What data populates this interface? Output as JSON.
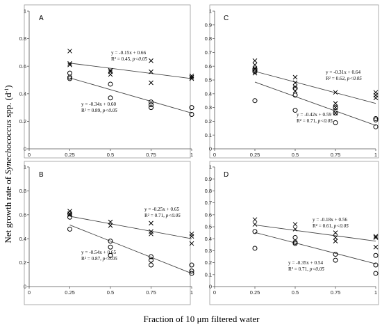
{
  "figure": {
    "ylabel_prefix": "Net growth rate of ",
    "ylabel_italic": "Synechococcus",
    "ylabel_suffix": " spp. (d",
    "ylabel_sup": "-1",
    "ylabel_close": ")",
    "xlabel": "Fraction of 10 μm filtered water"
  },
  "chart_data": [
    {
      "type": "scatter",
      "panel": "A",
      "xlim": [
        0,
        1
      ],
      "ylim": [
        0,
        1
      ],
      "xticks": [
        0,
        0.25,
        0.5,
        0.75,
        1
      ],
      "xtick_labels": [
        "0",
        "0.25",
        "0.5",
        "0.75",
        "1"
      ],
      "yticks": [
        0,
        0.2,
        0.4,
        0.6,
        0.8,
        1
      ],
      "ytick_labels": [
        "0",
        "0.2",
        "0.4",
        "0.6",
        "0.8",
        "1"
      ],
      "series": [
        {
          "marker": "cross",
          "points": [
            [
              0.25,
              0.71
            ],
            [
              0.25,
              0.62
            ],
            [
              0.25,
              0.61
            ],
            [
              0.5,
              0.57
            ],
            [
              0.5,
              0.56
            ],
            [
              0.5,
              0.54
            ],
            [
              0.75,
              0.64
            ],
            [
              0.75,
              0.56
            ],
            [
              0.75,
              0.48
            ],
            [
              1,
              0.53
            ],
            [
              1,
              0.52
            ],
            [
              1,
              0.51
            ]
          ],
          "fit": {
            "slope": -0.15,
            "intercept": 0.66
          },
          "equation": "y = -0.15x + 0.66",
          "r2_label": "R² = 0.45, ",
          "p_label": "p<0.05"
        },
        {
          "marker": "circle",
          "points": [
            [
              0.25,
              0.55
            ],
            [
              0.25,
              0.52
            ],
            [
              0.25,
              0.51
            ],
            [
              0.5,
              0.47
            ],
            [
              0.5,
              0.37
            ],
            [
              0.75,
              0.34
            ],
            [
              0.75,
              0.32
            ],
            [
              0.75,
              0.3
            ],
            [
              1,
              0.3
            ],
            [
              1,
              0.25
            ]
          ],
          "fit": {
            "slope": -0.34,
            "intercept": 0.6
          },
          "equation": "y = -0.34x + 0.60",
          "r2_label": "R² = 0.89, ",
          "p_label": "p<0.05"
        }
      ]
    },
    {
      "type": "scatter",
      "panel": "C",
      "xlim": [
        0,
        1
      ],
      "ylim": [
        0,
        1
      ],
      "xticks": [
        0,
        0.25,
        0.5,
        0.75,
        1
      ],
      "xtick_labels": [
        "0",
        "0.25",
        "0.5",
        "0.75",
        "1"
      ],
      "yticks": [
        0,
        0.1,
        0.2,
        0.3,
        0.4,
        0.5,
        0.6,
        0.7,
        0.8,
        0.9,
        1
      ],
      "ytick_labels": [
        "0",
        "0.1",
        "0.2",
        "0.3",
        "0.4",
        "0.5",
        "0.6",
        "0.7",
        "0.8",
        "0.9",
        "1"
      ],
      "series": [
        {
          "marker": "cross",
          "points": [
            [
              0.25,
              0.64
            ],
            [
              0.25,
              0.61
            ],
            [
              0.25,
              0.58
            ],
            [
              0.25,
              0.55
            ],
            [
              0.5,
              0.52
            ],
            [
              0.5,
              0.48
            ],
            [
              0.5,
              0.45
            ],
            [
              0.5,
              0.42
            ],
            [
              0.75,
              0.41
            ],
            [
              0.75,
              0.33
            ],
            [
              0.75,
              0.3
            ],
            [
              0.75,
              0.26
            ],
            [
              1,
              0.41
            ],
            [
              1,
              0.39
            ],
            [
              1,
              0.37
            ]
          ],
          "fit": {
            "slope": -0.31,
            "intercept": 0.64
          },
          "equation": "y = -0.31x + 0.64",
          "r2_label": "R² = 0.62, ",
          "p_label": "p<0.05"
        },
        {
          "marker": "circle",
          "points": [
            [
              0.25,
              0.58
            ],
            [
              0.25,
              0.57
            ],
            [
              0.25,
              0.56
            ],
            [
              0.25,
              0.35
            ],
            [
              0.5,
              0.44
            ],
            [
              0.5,
              0.39
            ],
            [
              0.5,
              0.28
            ],
            [
              0.75,
              0.3
            ],
            [
              0.75,
              0.26
            ],
            [
              0.75,
              0.19
            ],
            [
              1,
              0.22
            ],
            [
              1,
              0.21
            ],
            [
              1,
              0.16
            ]
          ],
          "fit": {
            "slope": -0.42,
            "intercept": 0.59
          },
          "equation": "y = -0.42x + 0.59",
          "r2_label": "R² = 0.71, ",
          "p_label": "p<0.05"
        }
      ]
    },
    {
      "type": "scatter",
      "panel": "B",
      "xlim": [
        0,
        1
      ],
      "ylim": [
        0,
        1
      ],
      "xticks": [
        0,
        0.25,
        0.5,
        0.75,
        1
      ],
      "xtick_labels": [
        "0",
        "0.25",
        "0.5",
        "0.75",
        "1"
      ],
      "yticks": [
        0,
        0.2,
        0.4,
        0.6,
        0.8,
        1
      ],
      "ytick_labels": [
        "0",
        "0.2",
        "0.4",
        "0.6",
        "0.8",
        "1"
      ],
      "series": [
        {
          "marker": "cross",
          "points": [
            [
              0.25,
              0.63
            ],
            [
              0.25,
              0.61
            ],
            [
              0.25,
              0.6
            ],
            [
              0.5,
              0.54
            ],
            [
              0.5,
              0.51
            ],
            [
              0.75,
              0.53
            ],
            [
              0.75,
              0.46
            ],
            [
              0.75,
              0.44
            ],
            [
              1,
              0.44
            ],
            [
              1,
              0.42
            ],
            [
              1,
              0.36
            ]
          ],
          "fit": {
            "slope": -0.25,
            "intercept": 0.65
          },
          "equation": "y = -0.25x + 0.65",
          "r2_label": "R² = 0.71, ",
          "p_label": "p<0.05"
        },
        {
          "marker": "circle",
          "points": [
            [
              0.25,
              0.61
            ],
            [
              0.25,
              0.58
            ],
            [
              0.25,
              0.48
            ],
            [
              0.5,
              0.38
            ],
            [
              0.5,
              0.33
            ],
            [
              0.5,
              0.26
            ],
            [
              0.75,
              0.25
            ],
            [
              0.75,
              0.22
            ],
            [
              0.75,
              0.18
            ],
            [
              1,
              0.18
            ],
            [
              1,
              0.13
            ],
            [
              1,
              0.11
            ]
          ],
          "fit": {
            "slope": -0.54,
            "intercept": 0.65
          },
          "equation": "y = -0.54x + 0.65",
          "r2_label": "R² = 0.87, ",
          "p_label": "p<0.05"
        }
      ]
    },
    {
      "type": "scatter",
      "panel": "D",
      "xlim": [
        0,
        1
      ],
      "ylim": [
        0,
        1
      ],
      "xticks": [
        0,
        0.25,
        0.5,
        0.75,
        1
      ],
      "xtick_labels": [
        "0",
        "0.25",
        "0.5",
        "0.75",
        "1"
      ],
      "yticks": [
        0,
        0.1,
        0.2,
        0.3,
        0.4,
        0.5,
        0.6,
        0.7,
        0.8,
        0.9,
        1
      ],
      "ytick_labels": [
        "0",
        "0.1",
        "0.2",
        "0.3",
        "0.4",
        "0.5",
        "0.6",
        "0.7",
        "0.8",
        "0.9",
        "1"
      ],
      "series": [
        {
          "marker": "cross",
          "points": [
            [
              0.25,
              0.56
            ],
            [
              0.25,
              0.52
            ],
            [
              0.5,
              0.52
            ],
            [
              0.5,
              0.48
            ],
            [
              0.75,
              0.45
            ],
            [
              0.75,
              0.41
            ],
            [
              0.75,
              0.38
            ],
            [
              1,
              0.42
            ],
            [
              1,
              0.41
            ],
            [
              1,
              0.33
            ]
          ],
          "fit": {
            "slope": -0.18,
            "intercept": 0.56
          },
          "equation": "y = -0.18x + 0.56",
          "r2_label": "R² = 0.61, ",
          "p_label": "p<0.05"
        },
        {
          "marker": "circle",
          "points": [
            [
              0.25,
              0.46
            ],
            [
              0.25,
              0.32
            ],
            [
              0.5,
              0.41
            ],
            [
              0.5,
              0.37
            ],
            [
              0.5,
              0.36
            ],
            [
              0.75,
              0.27
            ],
            [
              0.75,
              0.22
            ],
            [
              1,
              0.26
            ],
            [
              1,
              0.18
            ],
            [
              1,
              0.11
            ]
          ],
          "fit": {
            "slope": -0.35,
            "intercept": 0.54
          },
          "equation": "y = -0.35x + 0.54",
          "r2_label": "R² = 0.71, ",
          "p_label": "p<0.05"
        }
      ]
    }
  ]
}
